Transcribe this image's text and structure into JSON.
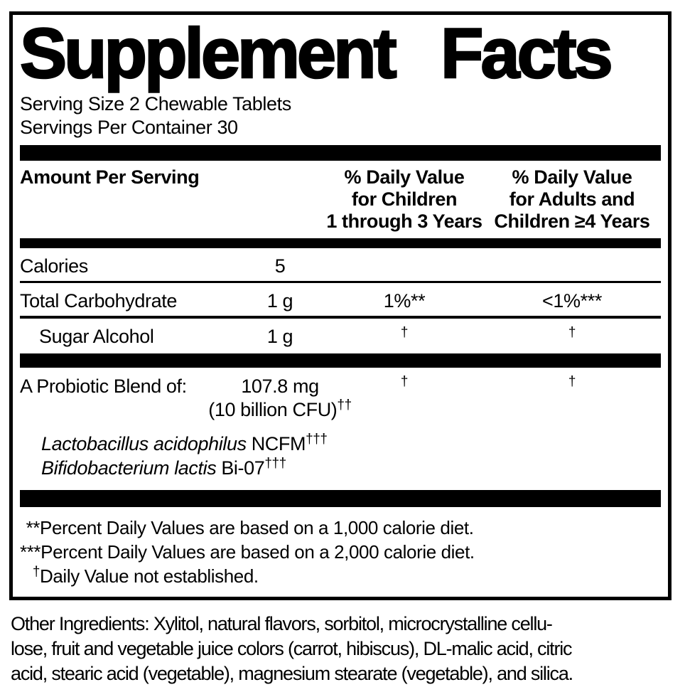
{
  "title": "Supplement Facts",
  "serving": {
    "size": "Serving Size 2 Chewable Tablets",
    "per_container": "Servings Per Container 30"
  },
  "table": {
    "amount_header": "Amount Per Serving",
    "dv_children_header": [
      "% Daily Value",
      "for Children",
      "1 through 3 Years"
    ],
    "dv_adults_header": [
      "% Daily Value",
      "for Adults and",
      "Children ≥4 Years"
    ],
    "rows": [
      {
        "name": "Calories",
        "amount": "5",
        "dv_children": "",
        "dv_adults": ""
      },
      {
        "name": "Total Carbohydrate",
        "amount": "1 g",
        "dv_children": "1%**",
        "dv_adults": "<1%***"
      },
      {
        "name": "Sugar Alcohol",
        "amount": "1 g",
        "dv_children": "†",
        "dv_adults": "†"
      }
    ],
    "probiotic": {
      "name": "A Probiotic Blend of:",
      "amount": "107.8 mg",
      "amount_note": "(10 billion CFU)",
      "amount_note_sup": "††",
      "dv_children": "†",
      "dv_adults": "†",
      "species": [
        {
          "italic": "Lactobacillus acidophilus",
          "normal": "NCFM",
          "sup": "†††"
        },
        {
          "italic": "Bifidobacterium lactis",
          "normal": "Bi-07",
          "sup": "†††"
        }
      ]
    }
  },
  "footnotes": [
    {
      "marker": "**",
      "text": "Percent Daily Values are based on a 1,000 calorie diet."
    },
    {
      "marker": "***",
      "text": "Percent Daily Values are based on a 2,000 calorie diet."
    },
    {
      "marker": "†",
      "text": "Daily Value not established."
    }
  ],
  "other_ingredients": {
    "lines": [
      "Other Ingredients: Xylitol, natural flavors, sorbitol, microcrystalline cellu-",
      "lose, fruit and vegetable juice colors (carrot, hibiscus), DL-malic acid, citric",
      "acid, stearic acid (vegetable), magnesium stearate (vegetable), and silica."
    ]
  },
  "colors": {
    "ink": "#000000",
    "background": "#ffffff"
  }
}
